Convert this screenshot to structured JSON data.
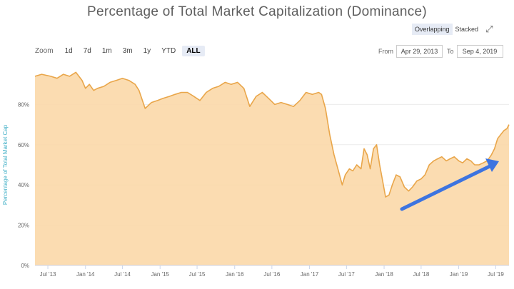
{
  "title": "Percentage of Total Market Capitalization (Dominance)",
  "zoom": {
    "label": "Zoom",
    "buttons": [
      "1d",
      "7d",
      "1m",
      "3m",
      "1y",
      "YTD",
      "ALL"
    ],
    "active": "ALL"
  },
  "mode": {
    "overlapping": "Overlapping",
    "stacked": "Stacked",
    "active": "Overlapping"
  },
  "range": {
    "from_label": "From",
    "from_value": "Apr 29, 2013",
    "to_label": "To",
    "to_value": "Sep 4, 2019"
  },
  "icons": {
    "fullscreen": "expand-icon"
  },
  "colors": {
    "area_fill": "#fbd8a9",
    "line": "#e9a64a",
    "arrow": "#3d74e0",
    "ylabel": "#4ab3c9"
  },
  "chart_data": {
    "type": "area",
    "title": "Percentage of Total Market Capitalization (Dominance)",
    "xlabel": "",
    "ylabel": "Percentage of Total Market Cap",
    "ylim": [
      0,
      100
    ],
    "y_ticks": [
      "0%",
      "20%",
      "40%",
      "60%",
      "80%"
    ],
    "x_ticks": [
      "Jul '13",
      "Jan '14",
      "Jul '14",
      "Jan '15",
      "Jul '15",
      "Jan '16",
      "Jul '16",
      "Jan '17",
      "Jul '17",
      "Jan '18",
      "Jul '18",
      "Jan '19",
      "Jul '19"
    ],
    "grid": true,
    "legend": "none",
    "annotation": "arrow pointing up-right (mid-2018 to mid-2019)",
    "series": [
      {
        "x": [
          "2013-04-29",
          "2013-06-01",
          "2013-07-15",
          "2013-08-15",
          "2013-09-15",
          "2013-10-15",
          "2013-11-15",
          "2013-12-15",
          "2014-01-01",
          "2014-01-20",
          "2014-02-10",
          "2014-03-01",
          "2014-04-01",
          "2014-05-01",
          "2014-06-01",
          "2014-07-01",
          "2014-08-01",
          "2014-09-01",
          "2014-09-20",
          "2014-10-20",
          "2014-11-20",
          "2014-12-20",
          "2015-01-15",
          "2015-02-15",
          "2015-03-15",
          "2015-04-15",
          "2015-05-15",
          "2015-06-15",
          "2015-07-15",
          "2015-08-15",
          "2015-09-15",
          "2015-10-15",
          "2015-11-15",
          "2015-12-15",
          "2016-01-15",
          "2016-02-15",
          "2016-03-15",
          "2016-04-15",
          "2016-05-15",
          "2016-06-15",
          "2016-07-15",
          "2016-08-15",
          "2016-09-15",
          "2016-10-15",
          "2016-11-15",
          "2016-12-15",
          "2017-01-15",
          "2017-02-15",
          "2017-03-01",
          "2017-03-20",
          "2017-04-10",
          "2017-05-01",
          "2017-05-20",
          "2017-06-10",
          "2017-06-25",
          "2017-07-15",
          "2017-08-01",
          "2017-08-20",
          "2017-09-10",
          "2017-09-25",
          "2017-10-10",
          "2017-10-25",
          "2017-11-10",
          "2017-11-25",
          "2017-12-10",
          "2017-12-25",
          "2018-01-08",
          "2018-01-25",
          "2018-02-10",
          "2018-03-01",
          "2018-03-20",
          "2018-04-10",
          "2018-05-01",
          "2018-05-20",
          "2018-06-10",
          "2018-07-01",
          "2018-07-20",
          "2018-08-10",
          "2018-09-01",
          "2018-09-20",
          "2018-10-10",
          "2018-11-01",
          "2018-11-20",
          "2018-12-10",
          "2019-01-01",
          "2019-01-20",
          "2019-02-10",
          "2019-03-01",
          "2019-03-20",
          "2019-04-10",
          "2019-05-01",
          "2019-05-20",
          "2019-06-10",
          "2019-06-25",
          "2019-07-10",
          "2019-07-25",
          "2019-08-10",
          "2019-08-25",
          "2019-09-04"
        ],
        "values": [
          94,
          95,
          94,
          93,
          95,
          94,
          96,
          92,
          88,
          90,
          87,
          88,
          89,
          91,
          92,
          93,
          92,
          90,
          87,
          78,
          81,
          82,
          83,
          84,
          85,
          86,
          86,
          84,
          82,
          86,
          88,
          89,
          91,
          90,
          91,
          88,
          79,
          84,
          86,
          83,
          80,
          81,
          80,
          79,
          82,
          86,
          85,
          86,
          85,
          78,
          65,
          55,
          48,
          40,
          45,
          48,
          47,
          50,
          48,
          58,
          55,
          48,
          58,
          60,
          50,
          42,
          34,
          35,
          40,
          45,
          44,
          39,
          37,
          39,
          42,
          43,
          45,
          50,
          52,
          53,
          54,
          52,
          53,
          54,
          52,
          51,
          53,
          52,
          50,
          50,
          51,
          52,
          55,
          58,
          63,
          65,
          67,
          68,
          70
        ]
      }
    ]
  }
}
